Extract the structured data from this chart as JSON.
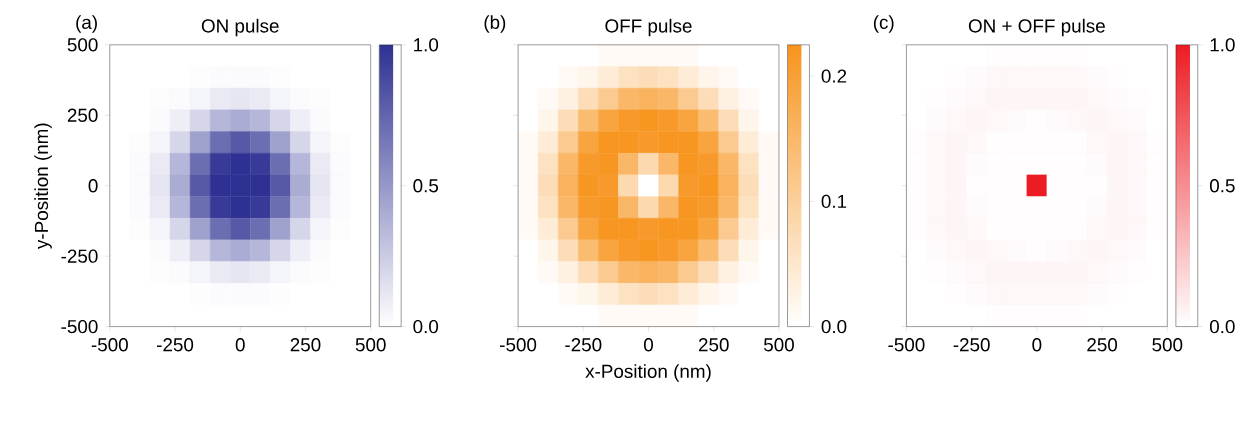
{
  "chart_data": [
    {
      "type": "heatmap",
      "title": "ON pulse",
      "ylabel": "y-Position (nm)",
      "annotations": [
        "(a)"
      ],
      "xlim": [
        -500,
        500
      ],
      "ylim": [
        -500,
        500
      ],
      "xticks": [
        -500,
        -250,
        0,
        250,
        500
      ],
      "yticks": [
        -500,
        -250,
        0,
        250,
        500
      ],
      "clim": [
        0,
        1
      ],
      "cticks": [
        {
          "value": 0,
          "label": "0.0"
        },
        {
          "value": 0.5,
          "label": "0.5"
        },
        {
          "value": 1,
          "label": "1.0"
        }
      ],
      "colors": [
        "#ffffff",
        "#2e3192"
      ],
      "cells": [
        [
          0,
          0,
          0,
          0,
          0,
          0,
          0,
          0,
          0,
          0,
          0,
          0,
          0
        ],
        [
          0,
          0,
          0,
          0,
          0.01,
          0.02,
          0.02,
          0.02,
          0.01,
          0,
          0,
          0,
          0
        ],
        [
          0,
          0,
          0.01,
          0.02,
          0.05,
          0.1,
          0.12,
          0.1,
          0.05,
          0.02,
          0.01,
          0,
          0
        ],
        [
          0,
          0,
          0.02,
          0.08,
          0.2,
          0.35,
          0.4,
          0.35,
          0.2,
          0.08,
          0.02,
          0,
          0
        ],
        [
          0,
          0.01,
          0.05,
          0.2,
          0.45,
          0.7,
          0.8,
          0.7,
          0.45,
          0.2,
          0.05,
          0.01,
          0
        ],
        [
          0,
          0.02,
          0.1,
          0.35,
          0.7,
          0.95,
          1,
          0.95,
          0.7,
          0.35,
          0.1,
          0.02,
          0
        ],
        [
          0,
          0.02,
          0.12,
          0.4,
          0.8,
          1,
          1,
          1,
          0.8,
          0.4,
          0.12,
          0.02,
          0
        ],
        [
          0,
          0.02,
          0.1,
          0.35,
          0.7,
          0.95,
          1,
          0.95,
          0.7,
          0.35,
          0.1,
          0.02,
          0
        ],
        [
          0,
          0.01,
          0.05,
          0.2,
          0.45,
          0.7,
          0.8,
          0.7,
          0.45,
          0.2,
          0.05,
          0.01,
          0
        ],
        [
          0,
          0,
          0.02,
          0.08,
          0.2,
          0.35,
          0.4,
          0.35,
          0.2,
          0.08,
          0.02,
          0,
          0
        ],
        [
          0,
          0,
          0.01,
          0.02,
          0.05,
          0.1,
          0.12,
          0.1,
          0.05,
          0.02,
          0.01,
          0,
          0
        ],
        [
          0,
          0,
          0,
          0,
          0.01,
          0.02,
          0.02,
          0.02,
          0.01,
          0,
          0,
          0,
          0
        ],
        [
          0,
          0,
          0,
          0,
          0,
          0,
          0,
          0,
          0,
          0,
          0,
          0,
          0
        ]
      ]
    },
    {
      "type": "heatmap",
      "title": "OFF pulse",
      "xlabel": "x-Position (nm)",
      "annotations": [
        "(b)"
      ],
      "tick_labels": "x",
      "xlim": [
        -500,
        500
      ],
      "ylim": [
        -500,
        500
      ],
      "xticks": [
        -500,
        -250,
        0,
        250,
        500
      ],
      "yticks": [
        -500,
        -250,
        0,
        250,
        500
      ],
      "clim": [
        0,
        0.225
      ],
      "cticks": [
        {
          "value": 0,
          "label": "0.0"
        },
        {
          "value": 0.1,
          "label": "0.1"
        },
        {
          "value": 0.2,
          "label": "0.2"
        }
      ],
      "colors": [
        "#ffffff",
        "#f7941d"
      ],
      "cells": [
        [
          0,
          0,
          0,
          0,
          0.01,
          0.01,
          0.01,
          0.01,
          0.01,
          0,
          0,
          0,
          0
        ],
        [
          0,
          0,
          0.01,
          0.02,
          0.04,
          0.06,
          0.07,
          0.06,
          0.04,
          0.02,
          0.01,
          0,
          0
        ],
        [
          0,
          0.01,
          0.03,
          0.07,
          0.11,
          0.15,
          0.16,
          0.15,
          0.11,
          0.07,
          0.03,
          0.01,
          0
        ],
        [
          0,
          0.02,
          0.07,
          0.14,
          0.19,
          0.21,
          0.22,
          0.21,
          0.19,
          0.14,
          0.07,
          0.02,
          0
        ],
        [
          0.01,
          0.04,
          0.11,
          0.19,
          0.22,
          0.22,
          0.21,
          0.22,
          0.22,
          0.19,
          0.11,
          0.04,
          0.01
        ],
        [
          0.01,
          0.06,
          0.15,
          0.21,
          0.22,
          0.15,
          0.08,
          0.15,
          0.22,
          0.21,
          0.15,
          0.06,
          0.01
        ],
        [
          0.01,
          0.07,
          0.16,
          0.22,
          0.21,
          0.08,
          0,
          0.08,
          0.21,
          0.22,
          0.16,
          0.07,
          0.01
        ],
        [
          0.01,
          0.06,
          0.15,
          0.21,
          0.22,
          0.15,
          0.08,
          0.15,
          0.22,
          0.21,
          0.15,
          0.06,
          0.01
        ],
        [
          0.01,
          0.04,
          0.11,
          0.19,
          0.22,
          0.22,
          0.21,
          0.22,
          0.22,
          0.19,
          0.11,
          0.04,
          0.01
        ],
        [
          0,
          0.02,
          0.07,
          0.14,
          0.19,
          0.21,
          0.22,
          0.21,
          0.19,
          0.14,
          0.07,
          0.02,
          0
        ],
        [
          0,
          0.01,
          0.03,
          0.07,
          0.11,
          0.15,
          0.16,
          0.15,
          0.11,
          0.07,
          0.03,
          0.01,
          0
        ],
        [
          0,
          0,
          0.01,
          0.02,
          0.04,
          0.06,
          0.07,
          0.06,
          0.04,
          0.02,
          0.01,
          0,
          0
        ],
        [
          0,
          0,
          0,
          0,
          0.01,
          0.01,
          0.01,
          0.01,
          0.01,
          0,
          0,
          0,
          0
        ]
      ]
    },
    {
      "type": "heatmap",
      "title": "ON + OFF pulse",
      "annotations": [
        "(c)"
      ],
      "tick_labels": "x",
      "xlim": [
        -500,
        500
      ],
      "ylim": [
        -500,
        500
      ],
      "xticks": [
        -500,
        -250,
        0,
        250,
        500
      ],
      "yticks": [
        -500,
        -250,
        0,
        250,
        500
      ],
      "clim": [
        0,
        1
      ],
      "cticks": [
        {
          "value": 0,
          "label": "0.0"
        },
        {
          "value": 0.5,
          "label": "0.5"
        },
        {
          "value": 1,
          "label": "1.0"
        }
      ],
      "colors": [
        "#ffffff",
        "#ed1c24"
      ],
      "cells": [
        [
          0,
          0,
          0,
          0,
          0.01,
          0.01,
          0.01,
          0.01,
          0.01,
          0,
          0,
          0,
          0
        ],
        [
          0,
          0,
          0.01,
          0.02,
          0.03,
          0.03,
          0.03,
          0.03,
          0.03,
          0.02,
          0.01,
          0,
          0
        ],
        [
          0,
          0.01,
          0.02,
          0.03,
          0.04,
          0.04,
          0.04,
          0.04,
          0.04,
          0.03,
          0.02,
          0.01,
          0
        ],
        [
          0,
          0.02,
          0.03,
          0.04,
          0.03,
          0.02,
          0.01,
          0.02,
          0.03,
          0.04,
          0.03,
          0.02,
          0
        ],
        [
          0.01,
          0.03,
          0.04,
          0.03,
          0.01,
          0.01,
          0.01,
          0.01,
          0.01,
          0.03,
          0.04,
          0.03,
          0.01
        ],
        [
          0.01,
          0.03,
          0.04,
          0.02,
          0.01,
          0.01,
          0.01,
          0.01,
          0.01,
          0.02,
          0.04,
          0.03,
          0.01
        ],
        [
          0.01,
          0.03,
          0.04,
          0.01,
          0.01,
          0.01,
          1,
          0.01,
          0.01,
          0.01,
          0.04,
          0.03,
          0.01
        ],
        [
          0.01,
          0.03,
          0.04,
          0.02,
          0.01,
          0.01,
          0.01,
          0.01,
          0.01,
          0.02,
          0.04,
          0.03,
          0.01
        ],
        [
          0.01,
          0.03,
          0.04,
          0.03,
          0.01,
          0.01,
          0.01,
          0.01,
          0.01,
          0.03,
          0.04,
          0.03,
          0.01
        ],
        [
          0,
          0.02,
          0.03,
          0.04,
          0.03,
          0.02,
          0.01,
          0.02,
          0.03,
          0.04,
          0.03,
          0.02,
          0
        ],
        [
          0,
          0.01,
          0.02,
          0.03,
          0.04,
          0.04,
          0.04,
          0.04,
          0.04,
          0.03,
          0.02,
          0.01,
          0
        ],
        [
          0,
          0,
          0.01,
          0.02,
          0.03,
          0.03,
          0.03,
          0.03,
          0.03,
          0.02,
          0.01,
          0,
          0
        ],
        [
          0,
          0,
          0,
          0,
          0.01,
          0.01,
          0.01,
          0.01,
          0.01,
          0,
          0,
          0,
          0
        ]
      ]
    }
  ]
}
